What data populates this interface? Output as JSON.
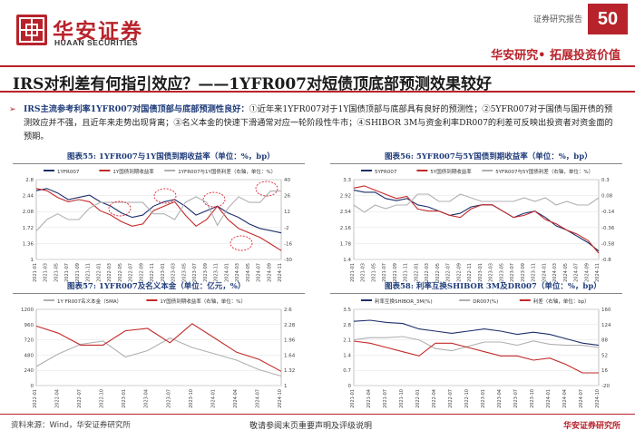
{
  "header": {
    "company_cn": "华安证券",
    "company_en": "HUAAN SECURITIES",
    "report_label": "证券研究报告",
    "page_number": "50",
    "slogan": "华安研究• 拓展投资价值",
    "brand_color": "#b8232b"
  },
  "title": "IRS对利差有何指引效应？——1YFR007对短债顶底部预测效果较好",
  "summary": {
    "lead": "IRS主流参考利率1YFR007对国债顶部与底部预测性良好：",
    "body": "①近年来1YFR007对于1Y国债顶部与底部具有良好的预测性；②5YFR007对于国债与国开债的预测效应并不强，且近年来走势出现背离；③名义本金的快速下滑通常对应一轮阶段性牛市；④SHIBOR 3M与资金利率DR007的利差可反映出投资者对资金面的预期。"
  },
  "charts": {
    "c55": {
      "title": "图表55:  1YFR007与1Y国债到期收益率（单位：%，bp）",
      "legend": [
        "1YFR007",
        "1Y国债到期收益率",
        "1YFR007与1Y国债利差（右轴，单位：%）"
      ]
    },
    "c56": {
      "title": "图表56:  5YFR007与5Y国债到期收益率（单位：%，bp）",
      "legend": [
        "5YFR007",
        "5Y国债到期收益率",
        "5YFR007与5Y国债利差（右轴，单位：%）"
      ]
    },
    "c57": {
      "title": "图表57:  1YFR007及名义本金（单位：亿元，%）",
      "legend": [
        "1Y FR007名义本金（5MA）",
        "1Y国债到期收益率（右轴，单位：%）"
      ]
    },
    "c58": {
      "title": "图表58:  利率互换SHIBOR 3M及DR007（单位：%，bp）",
      "legend": [
        "利率互换SHIBOR_3M(%)",
        "DR007(%)",
        "利差（右轴，单位：bp）"
      ]
    }
  },
  "chart_data": [
    {
      "type": "line",
      "title": "图表55:  1YFR007与1Y国债到期收益率（单位：%，bp）",
      "x": [
        "2021-01",
        "2021-03",
        "2021-05",
        "2021-07",
        "2021-09",
        "2021-11",
        "2022-01",
        "2022-03",
        "2022-05",
        "2022-07",
        "2022-09",
        "2022-11",
        "2023-01",
        "2023-03",
        "2023-05",
        "2023-07",
        "2023-09",
        "2023-11",
        "2024-01",
        "2024-03",
        "2024-05",
        "2024-07",
        "2024-09",
        "2024-11"
      ],
      "ylim": [
        1.0,
        2.8
      ],
      "y2lim": [
        -30,
        40
      ],
      "series": [
        {
          "name": "1YFR007",
          "color": "#1f2f6b",
          "values": [
            2.55,
            2.6,
            2.5,
            2.35,
            2.4,
            2.45,
            2.3,
            2.2,
            2.05,
            1.95,
            2.0,
            2.2,
            2.3,
            2.35,
            2.2,
            2.0,
            2.1,
            2.2,
            2.05,
            1.95,
            1.8,
            1.7,
            1.65,
            1.6
          ]
        },
        {
          "name": "1Y国债到期收益率",
          "color": "#c22a2a",
          "values": [
            2.6,
            2.55,
            2.4,
            2.3,
            2.35,
            2.3,
            2.1,
            2.0,
            1.85,
            1.75,
            1.8,
            2.1,
            2.2,
            2.3,
            2.0,
            1.75,
            1.9,
            2.2,
            1.9,
            1.7,
            1.6,
            1.5,
            1.35,
            1.2
          ]
        },
        {
          "name": "1YFR007与1Y国债利差（右轴，单位：%）",
          "color": "#b0b0b0",
          "axis": "right",
          "values": [
            -5,
            5,
            10,
            5,
            5,
            15,
            20,
            20,
            20,
            20,
            20,
            10,
            10,
            5,
            20,
            25,
            20,
            0,
            15,
            25,
            20,
            20,
            30,
            30
          ]
        }
      ]
    },
    {
      "type": "line",
      "title": "图表56:  5YFR007与5Y国债到期收益率（单位：%，bp）",
      "x": [
        "2021-01",
        "2021-03",
        "2021-05",
        "2021-07",
        "2021-09",
        "2021-11",
        "2022-01",
        "2022-03",
        "2022-05",
        "2022-07",
        "2022-09",
        "2022-11",
        "2023-01",
        "2023-03",
        "2023-05",
        "2023-07",
        "2023-09",
        "2023-11",
        "2024-01",
        "2024-03",
        "2024-05",
        "2024-07",
        "2024-09",
        "2024-11"
      ],
      "ylim": [
        1.4,
        3.3
      ],
      "y2lim": [
        -0.8,
        0.3
      ],
      "series": [
        {
          "name": "5YFR007",
          "color": "#1f2f6b",
          "values": [
            3.05,
            3.0,
            3.0,
            2.85,
            2.8,
            2.85,
            2.7,
            2.65,
            2.55,
            2.45,
            2.5,
            2.65,
            2.7,
            2.7,
            2.55,
            2.4,
            2.5,
            2.55,
            2.4,
            2.2,
            2.1,
            1.95,
            1.8,
            1.6
          ]
        },
        {
          "name": "5Y国债到期收益率",
          "color": "#c22a2a",
          "values": [
            3.1,
            3.15,
            3.05,
            2.95,
            2.85,
            2.9,
            2.6,
            2.55,
            2.55,
            2.45,
            2.4,
            2.6,
            2.7,
            2.7,
            2.55,
            2.4,
            2.45,
            2.55,
            2.35,
            2.25,
            2.1,
            2.0,
            1.85,
            1.55
          ]
        },
        {
          "name": "5YFR007与5Y国债利差（右轴，单位：%）",
          "color": "#b0b0b0",
          "axis": "right",
          "values": [
            -0.05,
            -0.15,
            -0.05,
            -0.1,
            -0.05,
            -0.05,
            0.1,
            0.1,
            0.0,
            0.0,
            0.1,
            0.05,
            0.0,
            0.0,
            0.0,
            0.0,
            0.05,
            0.0,
            0.05,
            -0.05,
            0.0,
            -0.05,
            -0.05,
            0.05
          ]
        }
      ]
    },
    {
      "type": "line",
      "title": "图表57:  1YFR007及名义本金（单位：亿元，%）",
      "x": [
        "2022-01",
        "2022-04",
        "2022-07",
        "2022-10",
        "2023-01",
        "2023-04",
        "2023-07",
        "2023-10",
        "2024-01",
        "2024-04",
        "2024-07",
        "2024-10"
      ],
      "ylim": [
        0,
        1200
      ],
      "y2lim": [
        1.0,
        2.6
      ],
      "series": [
        {
          "name": "1Y FR007名义本金（5MA）",
          "color": "#b0b0b0",
          "values": [
            300,
            500,
            650,
            700,
            450,
            550,
            750,
            600,
            500,
            400,
            250,
            150
          ]
        },
        {
          "name": "1Y国债到期收益率（右轴，单位：%）",
          "color": "#c22a2a",
          "axis": "right",
          "values": [
            2.25,
            2.1,
            1.85,
            1.85,
            2.15,
            2.2,
            1.9,
            2.3,
            2.0,
            1.7,
            1.55,
            1.3
          ]
        }
      ]
    },
    {
      "type": "line",
      "title": "图表58:  利率互换SHIBOR 3M及DR007（单位：%，bp）",
      "x": [
        "2021-01",
        "2021-04",
        "2021-07",
        "2021-10",
        "2022-01",
        "2022-04",
        "2022-07",
        "2022-10",
        "2023-01",
        "2023-04",
        "2023-07",
        "2023-10",
        "2024-01",
        "2024-04",
        "2024-07",
        "2024-10"
      ],
      "ylim": [
        0.0,
        3.5
      ],
      "y2lim": [
        -20,
        160
      ],
      "series": [
        {
          "name": "利率互换SHIBOR_3M(%)",
          "color": "#1f2f6b",
          "values": [
            2.95,
            3.0,
            2.9,
            2.85,
            2.6,
            2.5,
            2.4,
            2.5,
            2.6,
            2.5,
            2.35,
            2.45,
            2.35,
            2.15,
            1.95,
            1.85
          ]
        },
        {
          "name": "DR007(%)",
          "color": "#b0b0b0",
          "values": [
            2.1,
            2.2,
            2.2,
            2.25,
            2.1,
            1.7,
            1.6,
            1.8,
            2.0,
            2.0,
            1.85,
            2.05,
            1.9,
            1.85,
            1.85,
            1.75
          ]
        },
        {
          "name": "利差（右轴，单位：bp）",
          "color": "#c22a2a",
          "axis": "right",
          "values": [
            85,
            80,
            70,
            60,
            50,
            80,
            80,
            70,
            60,
            50,
            50,
            40,
            45,
            30,
            10,
            10
          ]
        }
      ]
    }
  ],
  "footer": {
    "source": "资料来源：Wind，华安证券研究所",
    "disclaimer": "敬请参阅末页重要声明及评级说明",
    "company": "华安证券研究所"
  }
}
